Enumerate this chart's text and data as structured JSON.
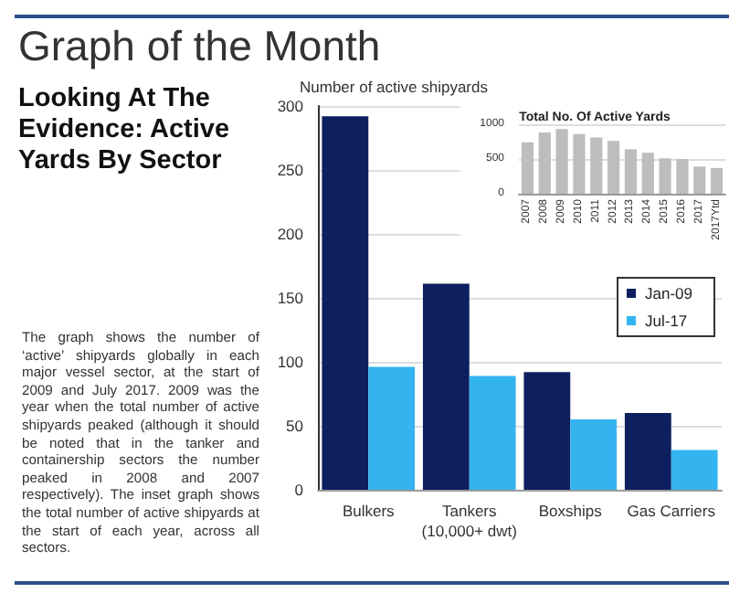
{
  "chart_data": [
    {
      "type": "bar",
      "title": "Graph of the Month",
      "subtitle": "Looking At The Evidence: Active Yards By Sector",
      "annotations": [
        "The graph shows the number of ‘active’ shipyards globally in each major vessel sector, at the start of 2009 and July 2017. 2009 was the year when the total number of active shipyards peaked (although it should be noted that in the tanker and containership sectors the number peaked in 2008 and 2007 respectively). The inset graph shows the total number of active shipyards at the start of each year, across all sectors."
      ],
      "ylabel": "Number of active shipyards",
      "categories": [
        "Bulkers",
        "Tankers\n(10,000+ dwt)",
        "Boxships",
        "Gas Carriers"
      ],
      "series": [
        {
          "name": "Jan-09",
          "color": "#0d1f5e",
          "values": [
            292,
            161,
            92,
            60
          ]
        },
        {
          "name": "Jul-17",
          "color": "#33b4ef",
          "values": [
            96,
            89,
            55,
            31
          ]
        }
      ],
      "ylim": [
        0,
        300
      ],
      "yticks": [
        0,
        50,
        100,
        150,
        200,
        250,
        300
      ],
      "grid": "y",
      "legend": "right"
    },
    {
      "type": "bar",
      "title": "Total No. Of Active Yards",
      "categories": [
        "2007",
        "2008",
        "2009",
        "2010",
        "2011",
        "2012",
        "2013",
        "2014",
        "2015",
        "2016",
        "2017",
        "2017Ytd"
      ],
      "values": [
        740,
        880,
        930,
        860,
        810,
        760,
        640,
        590,
        510,
        500,
        390,
        370
      ],
      "color": "#bdbdbd",
      "ylim": [
        0,
        1000
      ],
      "yticks": [
        0,
        500,
        1000
      ],
      "grid": "y"
    }
  ]
}
